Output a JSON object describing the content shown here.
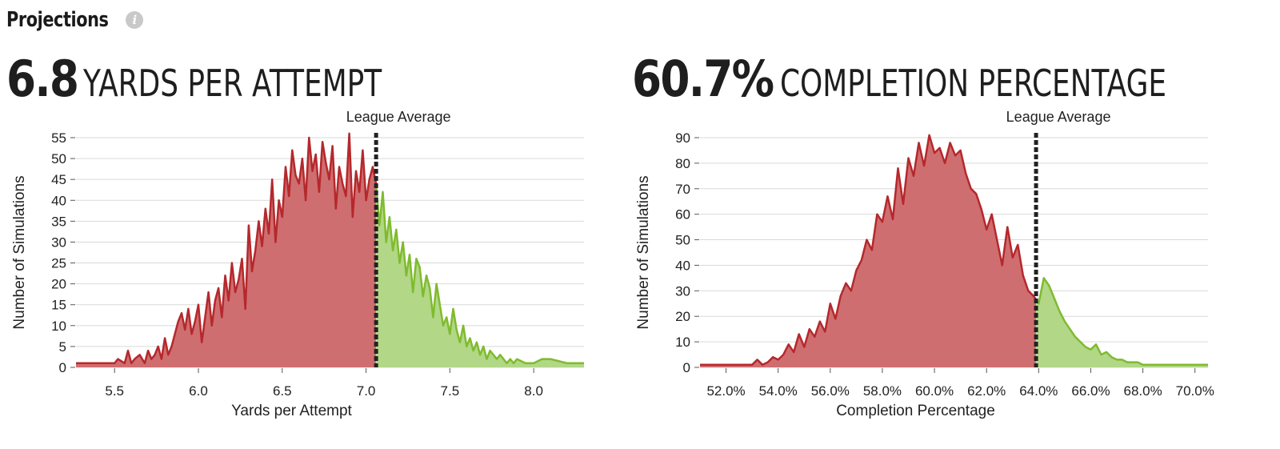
{
  "section": {
    "title": "Projections",
    "info_icon": "info-icon"
  },
  "colors": {
    "below": "#b5282c",
    "below_fill": "#cf6e70",
    "above": "#7fbb2e",
    "above_fill": "#b2d787",
    "reference": "#222222",
    "grid": "#d9d9d9"
  },
  "chart_data": [
    {
      "type": "area",
      "headline_value": "6.8",
      "headline_label": "YARDS PER ATTEMPT",
      "xlabel": "Yards per Attempt",
      "ylabel": "Number of Simulations",
      "reference_label": "League Average",
      "reference_x": 7.06,
      "xlim": [
        5.27,
        8.3
      ],
      "ylim": [
        0,
        55
      ],
      "x_ticks": [
        5.5,
        6.0,
        6.5,
        7.0,
        7.5,
        8.0
      ],
      "x_tick_labels": [
        "5.5",
        "6.0",
        "6.5",
        "7.0",
        "7.5",
        "8.0"
      ],
      "y_ticks": [
        0,
        5,
        10,
        15,
        20,
        25,
        30,
        35,
        40,
        45,
        50,
        55
      ],
      "y_tick_labels": [
        "0",
        "5",
        "10",
        "15",
        "20",
        "25",
        "30",
        "35",
        "40",
        "45",
        "50",
        "55"
      ],
      "grid": true,
      "series": [
        {
          "x": [
            5.27,
            5.5,
            5.52,
            5.56,
            5.58,
            5.6,
            5.62,
            5.65,
            5.68,
            5.7,
            5.72,
            5.74,
            5.76,
            5.78,
            5.8,
            5.82,
            5.84,
            5.86,
            5.88,
            5.9,
            5.92,
            5.94,
            5.96,
            5.98,
            6.0,
            6.02,
            6.04,
            6.06,
            6.08,
            6.1,
            6.12,
            6.14,
            6.16,
            6.18,
            6.2,
            6.22,
            6.24,
            6.26,
            6.28,
            6.3,
            6.32,
            6.34,
            6.36,
            6.38,
            6.4,
            6.42,
            6.44,
            6.46,
            6.48,
            6.5,
            6.52,
            6.54,
            6.56,
            6.58,
            6.6,
            6.62,
            6.64,
            6.66,
            6.68,
            6.7,
            6.72,
            6.74,
            6.76,
            6.78,
            6.8,
            6.82,
            6.84,
            6.86,
            6.88,
            6.9,
            6.92,
            6.94,
            6.96,
            6.98,
            7.0,
            7.02,
            7.04,
            7.06,
            7.08,
            7.1,
            7.12,
            7.14,
            7.16,
            7.18,
            7.2,
            7.22,
            7.24,
            7.26,
            7.28,
            7.3,
            7.32,
            7.34,
            7.36,
            7.38,
            7.4,
            7.42,
            7.44,
            7.46,
            7.48,
            7.5,
            7.52,
            7.54,
            7.56,
            7.58,
            7.6,
            7.62,
            7.64,
            7.66,
            7.68,
            7.7,
            7.72,
            7.74,
            7.76,
            7.78,
            7.8,
            7.82,
            7.84,
            7.86,
            7.88,
            7.9,
            7.95,
            8.0,
            8.05,
            8.1,
            8.2,
            8.3
          ],
          "y": [
            1,
            1,
            2,
            1,
            4,
            1,
            2,
            3,
            1,
            4,
            2,
            3,
            5,
            2,
            7,
            3,
            5,
            8,
            11,
            13,
            9,
            14,
            8,
            11,
            15,
            6,
            12,
            18,
            10,
            16,
            19,
            12,
            22,
            16,
            25,
            18,
            21,
            26,
            14,
            34,
            23,
            28,
            35,
            29,
            38,
            32,
            45,
            30,
            40,
            36,
            48,
            41,
            52,
            46,
            44,
            50,
            40,
            55,
            47,
            51,
            42,
            54,
            49,
            45,
            53,
            38,
            48,
            44,
            41,
            56,
            36,
            47,
            42,
            52,
            40,
            45,
            48,
            44,
            34,
            42,
            30,
            36,
            28,
            33,
            25,
            30,
            22,
            27,
            18,
            26,
            24,
            17,
            22,
            19,
            12,
            20,
            15,
            10,
            12,
            8,
            14,
            9,
            6,
            10,
            5,
            7,
            4,
            6,
            3,
            5,
            2,
            4,
            3,
            2,
            3,
            2,
            1,
            2,
            1,
            2,
            1,
            1,
            2,
            2,
            1,
            1
          ]
        }
      ]
    },
    {
      "type": "area",
      "headline_value": "60.7%",
      "headline_label": "COMPLETION PERCENTAGE",
      "xlabel": "Completion Percentage",
      "ylabel": "Number of Simulations",
      "reference_label": "League Average",
      "reference_x": 63.9,
      "xlim": [
        51.0,
        70.5
      ],
      "ylim": [
        0,
        90
      ],
      "x_ticks": [
        52,
        54,
        56,
        58,
        60,
        62,
        64,
        66,
        68,
        70
      ],
      "x_tick_labels": [
        "52.0%",
        "54.0%",
        "56.0%",
        "58.0%",
        "60.0%",
        "62.0%",
        "64.0%",
        "66.0%",
        "68.0%",
        "70.0%"
      ],
      "y_ticks": [
        0,
        10,
        20,
        30,
        40,
        50,
        60,
        70,
        80,
        90
      ],
      "y_tick_labels": [
        "0",
        "10",
        "20",
        "30",
        "40",
        "50",
        "60",
        "70",
        "80",
        "90"
      ],
      "grid": true,
      "series": [
        {
          "x": [
            51.0,
            53.0,
            53.2,
            53.4,
            53.6,
            53.8,
            54.0,
            54.2,
            54.4,
            54.6,
            54.8,
            55.0,
            55.2,
            55.4,
            55.6,
            55.8,
            56.0,
            56.2,
            56.4,
            56.6,
            56.8,
            57.0,
            57.2,
            57.4,
            57.6,
            57.8,
            58.0,
            58.2,
            58.4,
            58.6,
            58.8,
            59.0,
            59.2,
            59.4,
            59.6,
            59.8,
            60.0,
            60.2,
            60.4,
            60.6,
            60.8,
            61.0,
            61.2,
            61.4,
            61.6,
            61.8,
            62.0,
            62.2,
            62.4,
            62.6,
            62.8,
            63.0,
            63.2,
            63.4,
            63.6,
            63.8,
            64.0,
            64.2,
            64.4,
            64.6,
            64.8,
            65.0,
            65.2,
            65.4,
            65.6,
            65.8,
            66.0,
            66.2,
            66.4,
            66.6,
            66.8,
            67.0,
            67.2,
            67.4,
            67.6,
            67.8,
            68.0,
            68.2,
            68.5,
            69.0,
            69.5,
            70.5
          ],
          "y": [
            1,
            1,
            3,
            1,
            2,
            4,
            3,
            5,
            9,
            6,
            13,
            8,
            15,
            12,
            18,
            14,
            25,
            19,
            28,
            33,
            30,
            38,
            42,
            50,
            46,
            60,
            57,
            67,
            58,
            78,
            64,
            82,
            75,
            88,
            79,
            91,
            84,
            86,
            80,
            88,
            83,
            85,
            76,
            70,
            68,
            62,
            54,
            60,
            50,
            40,
            55,
            43,
            48,
            36,
            30,
            28,
            25,
            35,
            32,
            27,
            22,
            18,
            15,
            12,
            10,
            8,
            7,
            9,
            5,
            6,
            4,
            3,
            3,
            2,
            2,
            2,
            1,
            1,
            1,
            1,
            1,
            1
          ]
        }
      ]
    }
  ]
}
